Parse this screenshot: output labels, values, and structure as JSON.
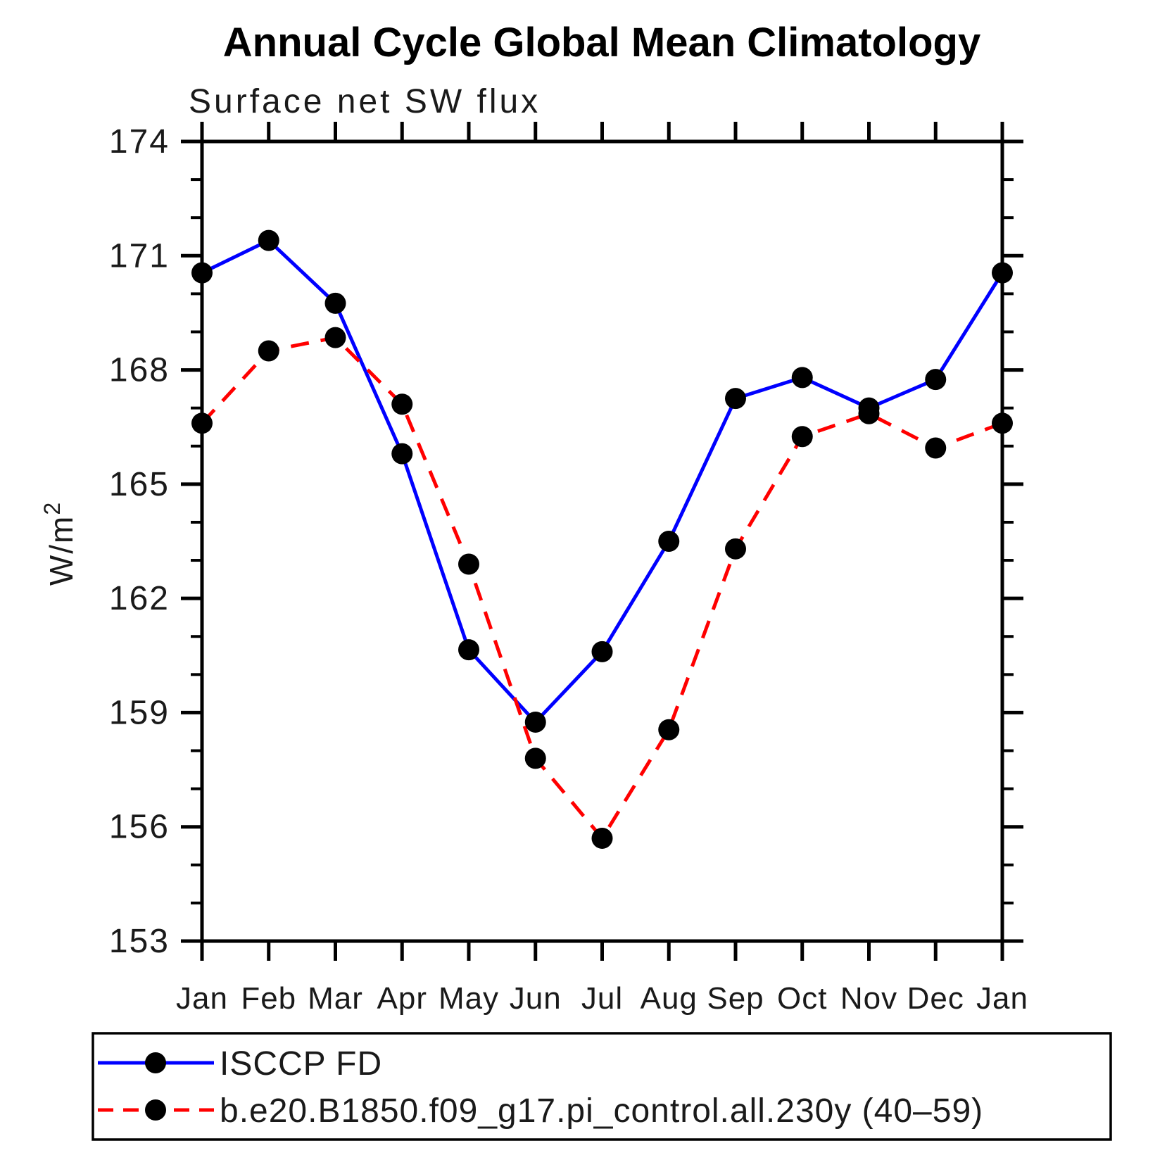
{
  "title": "Annual Cycle Global Mean Climatology",
  "subtitle": "Surface net SW flux",
  "ylabel": {
    "base": "W/m",
    "exp": "2"
  },
  "chart_data": {
    "type": "line",
    "categories": [
      "Jan",
      "Feb",
      "Mar",
      "Apr",
      "May",
      "Jun",
      "Jul",
      "Aug",
      "Sep",
      "Oct",
      "Nov",
      "Dec",
      "Jan"
    ],
    "series": [
      {
        "name": "ISCCP FD",
        "color": "#0000ff",
        "line_style": "solid",
        "marker": "circle",
        "marker_color": "#000000",
        "values": [
          170.55,
          171.4,
          169.75,
          165.8,
          160.65,
          158.75,
          160.6,
          163.5,
          167.25,
          167.8,
          167.0,
          167.75,
          170.55
        ]
      },
      {
        "name": "b.e20.B1850.f09_g17.pi_control.all.230y (40–59)",
        "color": "#ff0000",
        "line_style": "dashed",
        "marker": "circle",
        "marker_color": "#000000",
        "values": [
          166.6,
          168.5,
          168.85,
          167.1,
          162.9,
          157.8,
          155.7,
          158.55,
          163.3,
          166.25,
          166.85,
          165.95,
          166.6
        ]
      }
    ],
    "ylim": [
      153,
      174
    ],
    "yticks_major": [
      153,
      156,
      159,
      162,
      165,
      168,
      171,
      174
    ],
    "ytick_minor_step": 1,
    "xlabel": "",
    "grid": false,
    "legend_position": "bottom-left"
  }
}
